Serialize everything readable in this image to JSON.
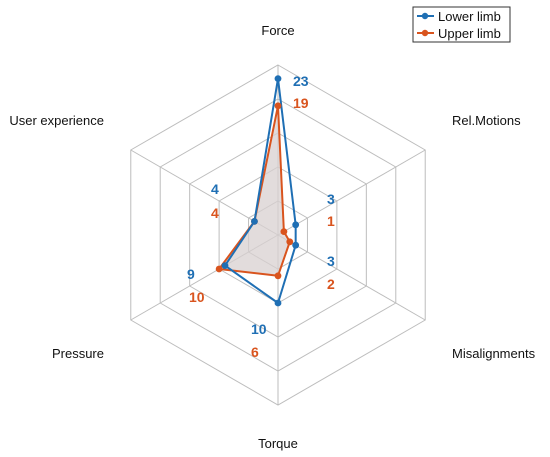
{
  "chart_data": {
    "type": "radar",
    "axes": [
      "Force",
      "Rel.Motions",
      "Misalignments",
      "Torque",
      "Pressure",
      "User experience"
    ],
    "rmax": 25,
    "rings": 5,
    "grid": true,
    "legend_position": "top-right",
    "series": [
      {
        "name": "Lower limb",
        "color": "#1f6fb4",
        "values": [
          23,
          3,
          3,
          10,
          9,
          4
        ],
        "labels": [
          "23",
          "3",
          "3",
          "10",
          "9",
          "4"
        ]
      },
      {
        "name": "Upper limb",
        "color": "#d9541e",
        "fill": "#d8d0d0",
        "values": [
          19,
          1,
          2,
          6,
          10,
          4
        ],
        "labels": [
          "19",
          "1",
          "2",
          "6",
          "10",
          "4"
        ]
      }
    ]
  }
}
